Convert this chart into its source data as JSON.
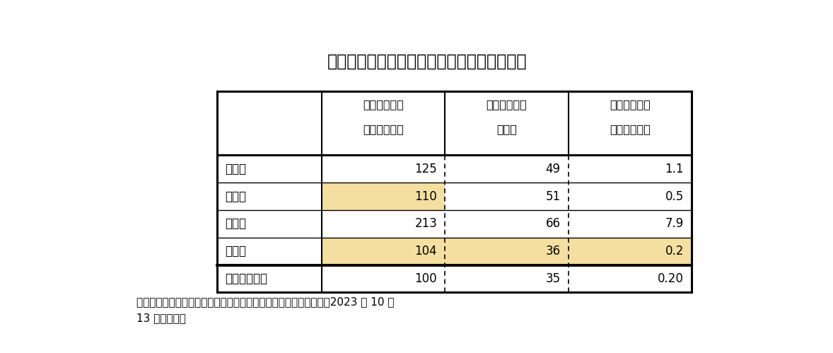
{
  "title": "図４　上場維持基準適合企業の項目別集計値",
  "col_headers": [
    [
      "流通株式時価",
      "総額（億円）"
    ],
    [
      "流通株式比率",
      "（％）"
    ],
    [
      "１日平均売買",
      "代金（億円）"
    ]
  ],
  "row_headers": [
    "平均値",
    "中央値",
    "最大値",
    "最小値",
    "上場維持基準"
  ],
  "data": [
    [
      "125",
      "49",
      "1.1"
    ],
    [
      "110",
      "51",
      "0.5"
    ],
    [
      "213",
      "66",
      "7.9"
    ],
    [
      "104",
      "36",
      "0.2"
    ],
    [
      "100",
      "35",
      "0.20"
    ]
  ],
  "highlight_cells": {
    "1": [
      1
    ],
    "3": [
      1,
      2,
      3
    ]
  },
  "highlight_color": "#F5DFA0",
  "bg_color": "#FFFFFF",
  "footer_text": "（資料）各社公表資料、東京証券取引所『市場区分の再選択一覧（2023 年 10 月\n13 日公表）』"
}
